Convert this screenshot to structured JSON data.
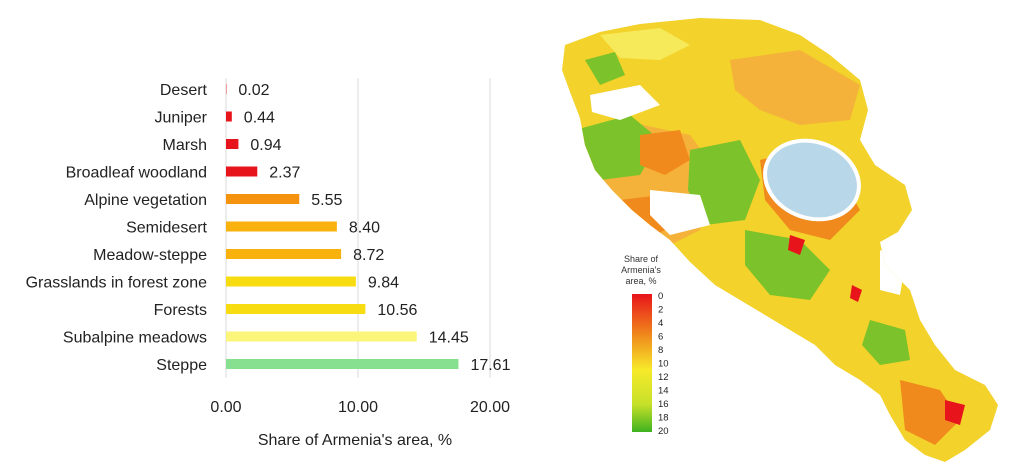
{
  "chart_data": {
    "type": "bar",
    "orientation": "horizontal",
    "categories": [
      "Desert",
      "Juniper",
      "Marsh",
      "Broadleaf woodland",
      "Alpine vegetation",
      "Semidesert",
      "Meadow-steppe",
      "Grasslands in forest zone",
      "Forests",
      "Subalpine meadows",
      "Steppe"
    ],
    "values": [
      0.02,
      0.44,
      0.94,
      2.37,
      5.55,
      8.4,
      8.72,
      9.84,
      10.56,
      14.45,
      17.61
    ],
    "value_labels": [
      "0.02",
      "0.44",
      "0.94",
      "2.37",
      "5.55",
      "8.40",
      "8.72",
      "9.84",
      "10.56",
      "14.45",
      "17.61"
    ],
    "colors": [
      "#e8141b",
      "#e8141b",
      "#e8141b",
      "#e8141b",
      "#f5920e",
      "#f9b20d",
      "#f9b20d",
      "#f7dc12",
      "#f7dc12",
      "#fbf57a",
      "#86e08f"
    ],
    "xlabel": "Share of Armenia's area, %",
    "xlim": [
      0,
      20
    ],
    "xticks": [
      "0.00",
      "10.00",
      "20.00"
    ],
    "xtick_values": [
      0,
      10,
      20
    ],
    "grid": "vertical"
  },
  "map": {
    "legend_title": [
      "Share of",
      "Armenia's",
      "area, %"
    ],
    "legend_ticks": [
      "0",
      "2",
      "4",
      "6",
      "8",
      "10",
      "12",
      "14",
      "16",
      "18",
      "20"
    ],
    "colors": {
      "red": "#e8141b",
      "orange": "#f08a1c",
      "light_orange": "#f5b23a",
      "yellow": "#f2d22b",
      "light_yellow": "#f7ea5a",
      "green": "#7cc22b",
      "lake": "#b8d7e8"
    }
  }
}
